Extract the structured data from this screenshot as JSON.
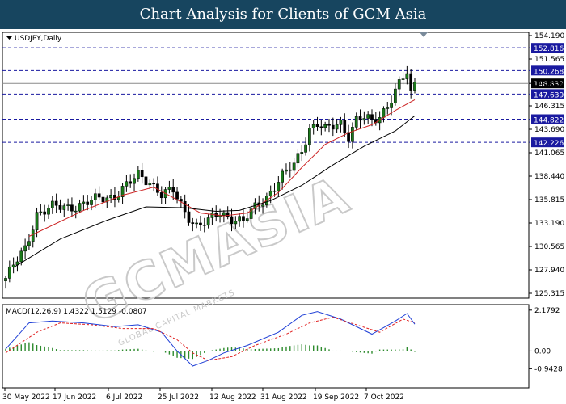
{
  "page_title": "Chart Analysis for Clients of GCM Asia",
  "watermark": {
    "main": "GCMASIA",
    "sub": "GLOBAL CAPITAL MARKETS"
  },
  "colors": {
    "header_bg": "#17455f",
    "candle_up": "#1a7a1a",
    "candle_down": "#000000",
    "ma_fast": "#cc2222",
    "ma_slow": "#000000",
    "macd_line": "#1f3fd6",
    "signal_line": "#e02020",
    "histogram": "#2e8b2e",
    "level_line": "#1a1aa0",
    "price_tag": "#1a1aa0",
    "current_tag": "#000000"
  },
  "chart_data": [
    {
      "type": "candlestick",
      "symbol": "USDJPY,Daily",
      "y_ticks": [
        "154.190",
        "151.565",
        "148.832",
        "146.315",
        "143.690",
        "141.065",
        "138.440",
        "135.815",
        "133.190",
        "130.565",
        "127.940",
        "125.315"
      ],
      "ylim": [
        125.315,
        154.19
      ],
      "x_ticks": [
        "30 May 2022",
        "17 Jun 2022",
        "6 Jul 2022",
        "25 Jul 2022",
        "12 Aug 2022",
        "31 Aug 2022",
        "19 Sep 2022",
        "7 Oct 2022"
      ],
      "horizontal_levels": [
        152.816,
        150.268,
        147.639,
        144.822,
        142.226
      ],
      "current_price": 148.832,
      "close_path": [
        [
          0,
          127.0
        ],
        [
          5,
          130.3
        ],
        [
          8,
          134.3
        ],
        [
          12,
          134.9
        ],
        [
          16,
          135.0
        ],
        [
          20,
          135.3
        ],
        [
          24,
          135.9
        ],
        [
          28,
          136.3
        ],
        [
          32,
          137.7
        ],
        [
          34,
          138.5
        ],
        [
          37,
          137.9
        ],
        [
          40,
          136.4
        ],
        [
          43,
          136.7
        ],
        [
          46,
          134.5
        ],
        [
          49,
          132.9
        ],
        [
          52,
          133.3
        ],
        [
          55,
          134.4
        ],
        [
          58,
          133.8
        ],
        [
          61,
          133.3
        ],
        [
          64,
          134.9
        ],
        [
          67,
          136.2
        ],
        [
          70,
          137.9
        ],
        [
          72,
          138.8
        ],
        [
          74,
          139.7
        ],
        [
          76,
          141.5
        ],
        [
          78,
          143.8
        ],
        [
          80,
          144.3
        ],
        [
          82,
          143.5
        ],
        [
          84,
          144.0
        ],
        [
          86,
          144.5
        ],
        [
          88,
          143.0
        ],
        [
          90,
          144.7
        ],
        [
          92,
          144.9
        ],
        [
          94,
          144.5
        ],
        [
          96,
          145.3
        ],
        [
          98,
          146.4
        ],
        [
          100,
          148.0
        ],
        [
          102,
          149.3
        ],
        [
          103,
          150.0
        ],
        [
          104,
          147.5
        ],
        [
          105,
          148.8
        ]
      ],
      "ma_fast_path": [
        [
          6,
          131.7
        ],
        [
          20,
          134.6
        ],
        [
          30,
          136.3
        ],
        [
          38,
          137.2
        ],
        [
          44,
          135.8
        ],
        [
          50,
          134.3
        ],
        [
          56,
          134.0
        ],
        [
          62,
          134.3
        ],
        [
          70,
          136.6
        ],
        [
          76,
          139.4
        ],
        [
          82,
          142.0
        ],
        [
          88,
          143.3
        ],
        [
          94,
          144.2
        ],
        [
          100,
          145.8
        ],
        [
          105,
          147.0
        ]
      ],
      "ma_slow_path": [
        [
          2,
          128.2
        ],
        [
          14,
          131.4
        ],
        [
          26,
          133.5
        ],
        [
          36,
          135.0
        ],
        [
          46,
          134.9
        ],
        [
          54,
          134.5
        ],
        [
          60,
          134.6
        ],
        [
          68,
          135.7
        ],
        [
          76,
          137.4
        ],
        [
          84,
          139.7
        ],
        [
          92,
          141.8
        ],
        [
          100,
          143.5
        ],
        [
          105,
          145.2
        ]
      ]
    },
    {
      "type": "line",
      "title": "MACD(12,26,9) 1.4322 1.5129 -0.0807",
      "y_ticks": [
        "2.1792",
        "0.00",
        "-0.9428"
      ],
      "ylim": [
        -1.1,
        2.3
      ],
      "macd": 1.4322,
      "signal": 1.5129,
      "histogram_last": -0.0807,
      "series": [
        {
          "values": [
            [
              0,
              0.1
            ],
            [
              6,
              1.5
            ],
            [
              12,
              1.6
            ],
            [
              20,
              1.5
            ],
            [
              28,
              1.3
            ],
            [
              34,
              1.4
            ],
            [
              40,
              1.0
            ],
            [
              44,
              0.0
            ],
            [
              48,
              -0.8
            ],
            [
              52,
              -0.5
            ],
            [
              56,
              -0.1
            ],
            [
              62,
              0.3
            ],
            [
              70,
              1.0
            ],
            [
              76,
              1.9
            ],
            [
              80,
              2.1
            ],
            [
              86,
              1.7
            ],
            [
              94,
              0.9
            ],
            [
              100,
              1.6
            ],
            [
              103,
              2.0
            ],
            [
              105,
              1.43
            ]
          ]
        },
        {
          "values": [
            [
              0,
              -0.1
            ],
            [
              8,
              1.0
            ],
            [
              14,
              1.5
            ],
            [
              22,
              1.4
            ],
            [
              30,
              1.2
            ],
            [
              38,
              1.2
            ],
            [
              44,
              0.6
            ],
            [
              48,
              -0.1
            ],
            [
              52,
              -0.5
            ],
            [
              58,
              -0.3
            ],
            [
              64,
              0.3
            ],
            [
              72,
              0.9
            ],
            [
              78,
              1.5
            ],
            [
              84,
              1.8
            ],
            [
              90,
              1.4
            ],
            [
              96,
              1.0
            ],
            [
              102,
              1.7
            ],
            [
              105,
              1.51
            ]
          ]
        }
      ]
    }
  ]
}
